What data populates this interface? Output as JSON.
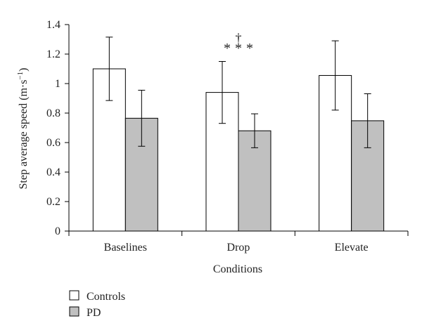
{
  "chart_data": {
    "type": "bar",
    "title": "",
    "xlabel": "Conditions",
    "ylabel": "Step average speed (m·s",
    "ylabel_superscript": "−1",
    "ylabel_close": ")",
    "ylim": [
      0,
      1.4
    ],
    "yticks": [
      0,
      0.2,
      0.4,
      0.6,
      0.8,
      1,
      1.2,
      1.4
    ],
    "ytick_labels": [
      "0",
      "0.2",
      "0.4",
      "0.6",
      "0.8",
      "1",
      "1.2",
      "1.4"
    ],
    "grid": false,
    "legend_placement": "bottom-left",
    "categories": [
      "Baselines",
      "Drop",
      "Elevate"
    ],
    "series": [
      {
        "name": "Controls",
        "color": "#ffffff",
        "values": [
          1.1,
          0.94,
          1.055
        ],
        "error": [
          0.215,
          0.21,
          0.235
        ]
      },
      {
        "name": "PD",
        "color": "#c0c0c0",
        "values": [
          0.765,
          0.68,
          0.748
        ],
        "error": [
          0.19,
          0.115,
          0.183
        ]
      }
    ],
    "annotations": [
      {
        "category": "Drop",
        "text_dagger": "†",
        "text_stars": "***"
      }
    ]
  }
}
